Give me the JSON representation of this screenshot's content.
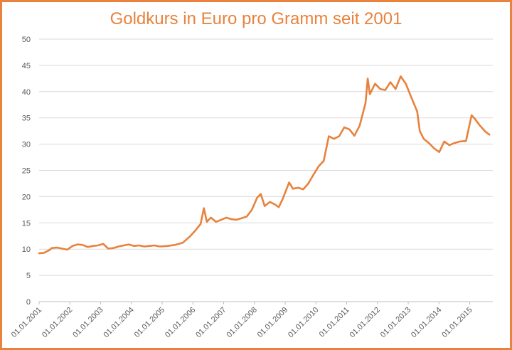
{
  "chart_data": {
    "type": "line",
    "title": "Goldkurs in Euro pro Gramm seit 2001",
    "xlabel": "",
    "ylabel": "",
    "ylim": [
      0,
      50
    ],
    "y_ticks": [
      0,
      5,
      10,
      15,
      20,
      25,
      30,
      35,
      40,
      45,
      50
    ],
    "x_tick_labels": [
      "01.01.2001",
      "01.01.2002",
      "01.01.2003",
      "01.01.2004",
      "01.01.2005",
      "01.01.2006",
      "01.01.2007",
      "01.01.2008",
      "01.01.2009",
      "01.01.2010",
      "01.01.2011",
      "01.01.2012",
      "01.01.2013",
      "01.01.2014",
      "01.01.2015"
    ],
    "grid": "horizontal",
    "legend": "none",
    "color": "#e8823c",
    "series": [
      {
        "x": [
          "2001-01-01",
          "2001-03-01",
          "2001-05-01",
          "2001-06-01",
          "2001-08-01",
          "2001-10-01",
          "2001-12-01",
          "2002-02-01",
          "2002-04-01",
          "2002-06-01",
          "2002-08-01",
          "2002-10-01",
          "2002-12-01",
          "2003-02-01",
          "2003-04-01",
          "2003-06-01",
          "2003-08-01",
          "2003-10-01",
          "2003-12-01",
          "2004-02-01",
          "2004-04-01",
          "2004-06-01",
          "2004-08-01",
          "2004-10-01",
          "2004-12-01",
          "2005-03-01",
          "2005-06-01",
          "2005-09-01",
          "2005-12-01",
          "2006-02-01",
          "2006-04-01",
          "2006-05-10",
          "2006-06-15",
          "2006-08-01",
          "2006-10-01",
          "2006-12-01",
          "2007-02-01",
          "2007-04-01",
          "2007-06-01",
          "2007-08-01",
          "2007-10-01",
          "2007-12-01",
          "2008-02-01",
          "2008-03-15",
          "2008-05-01",
          "2008-07-01",
          "2008-09-01",
          "2008-10-15",
          "2008-12-01",
          "2009-02-15",
          "2009-04-01",
          "2009-06-01",
          "2009-08-01",
          "2009-10-01",
          "2009-12-01",
          "2010-02-01",
          "2010-04-01",
          "2010-06-01",
          "2010-08-01",
          "2010-10-01",
          "2010-12-01",
          "2011-02-01",
          "2011-04-01",
          "2011-06-01",
          "2011-08-10",
          "2011-09-05",
          "2011-10-01",
          "2011-12-01",
          "2012-02-01",
          "2012-04-01",
          "2012-06-01",
          "2012-08-01",
          "2012-10-01",
          "2012-12-01",
          "2013-02-01",
          "2013-04-15",
          "2013-05-15",
          "2013-07-01",
          "2013-09-01",
          "2013-11-01",
          "2014-01-01",
          "2014-03-01",
          "2014-05-01",
          "2014-07-01",
          "2014-09-01",
          "2014-11-15",
          "2015-01-20",
          "2015-03-01",
          "2015-05-01",
          "2015-07-01",
          "2015-08-20"
        ],
        "values": [
          9.2,
          9.3,
          9.8,
          10.2,
          10.3,
          10.1,
          9.9,
          10.6,
          10.9,
          10.8,
          10.4,
          10.6,
          10.7,
          11.0,
          10.1,
          10.2,
          10.5,
          10.7,
          10.9,
          10.6,
          10.7,
          10.5,
          10.6,
          10.7,
          10.5,
          10.6,
          10.8,
          11.2,
          12.5,
          13.6,
          14.8,
          17.8,
          15.2,
          16.0,
          15.2,
          15.6,
          16.0,
          15.7,
          15.6,
          15.9,
          16.2,
          17.5,
          19.8,
          20.5,
          18.2,
          19.0,
          18.5,
          18.0,
          19.6,
          22.7,
          21.5,
          21.7,
          21.4,
          22.5,
          24.2,
          25.8,
          26.8,
          31.5,
          31.0,
          31.5,
          33.2,
          32.8,
          31.6,
          33.5,
          37.8,
          42.5,
          39.5,
          41.5,
          40.5,
          40.3,
          41.8,
          40.5,
          42.9,
          41.5,
          39.0,
          36.2,
          32.5,
          31.0,
          30.2,
          29.2,
          28.5,
          30.5,
          29.8,
          30.2,
          30.5,
          30.6,
          35.5,
          34.8,
          33.5,
          32.4,
          31.8
        ]
      }
    ]
  }
}
